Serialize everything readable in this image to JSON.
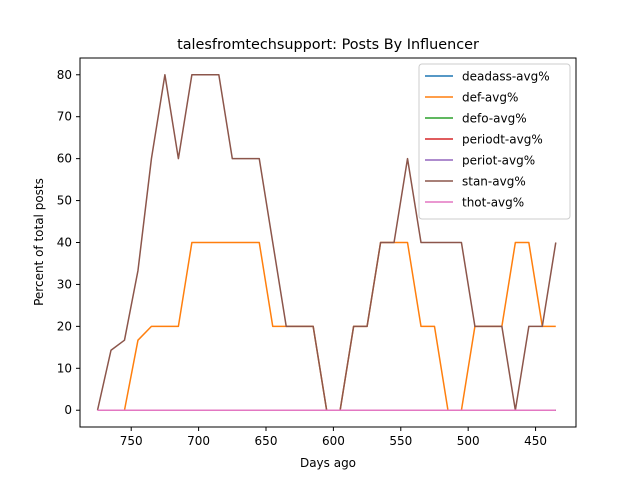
{
  "chart_data": {
    "type": "line",
    "title": "talesfromtechsupport: Posts By Influencer",
    "xlabel": "Days ago",
    "ylabel": "Percent of total posts",
    "x_reversed": true,
    "xlim": [
      788,
      420
    ],
    "ylim": [
      -4,
      84
    ],
    "xticks": [
      750,
      700,
      650,
      600,
      550,
      500,
      450
    ],
    "yticks": [
      0,
      10,
      20,
      30,
      40,
      50,
      60,
      70,
      80
    ],
    "legend_position": "top-right",
    "x": [
      775,
      765,
      755,
      745,
      735,
      725,
      715,
      705,
      695,
      685,
      675,
      665,
      655,
      645,
      635,
      625,
      615,
      605,
      595,
      585,
      575,
      565,
      555,
      545,
      535,
      525,
      515,
      505,
      495,
      485,
      475,
      465,
      455,
      445,
      435
    ],
    "series": [
      {
        "name": "deadass-avg%",
        "color": "#1f77b4",
        "values": [
          0,
          0,
          0,
          0,
          0,
          0,
          0,
          0,
          0,
          0,
          0,
          0,
          0,
          0,
          0,
          0,
          0,
          0,
          0,
          0,
          0,
          0,
          0,
          0,
          0,
          0,
          0,
          0,
          0,
          0,
          0,
          0,
          0,
          0,
          0
        ]
      },
      {
        "name": "def-avg%",
        "color": "#ff7f0e",
        "values": [
          0,
          0,
          0,
          16.7,
          20,
          20,
          20,
          40,
          40,
          40,
          40,
          40,
          40,
          20,
          20,
          20,
          20,
          0,
          0,
          20,
          20,
          40,
          40,
          40,
          20,
          20,
          0,
          0,
          20,
          20,
          20,
          40,
          40,
          20,
          20
        ]
      },
      {
        "name": "defo-avg%",
        "color": "#2ca02c",
        "values": [
          0,
          0,
          0,
          0,
          0,
          0,
          0,
          0,
          0,
          0,
          0,
          0,
          0,
          0,
          0,
          0,
          0,
          0,
          0,
          0,
          0,
          0,
          0,
          0,
          0,
          0,
          0,
          0,
          0,
          0,
          0,
          0,
          0,
          0,
          0
        ]
      },
      {
        "name": "periodt-avg%",
        "color": "#d62728",
        "values": [
          0,
          0,
          0,
          0,
          0,
          0,
          0,
          0,
          0,
          0,
          0,
          0,
          0,
          0,
          0,
          0,
          0,
          0,
          0,
          0,
          0,
          0,
          0,
          0,
          0,
          0,
          0,
          0,
          0,
          0,
          0,
          0,
          0,
          0,
          0
        ]
      },
      {
        "name": "periot-avg%",
        "color": "#9467bd",
        "values": [
          0,
          0,
          0,
          0,
          0,
          0,
          0,
          0,
          0,
          0,
          0,
          0,
          0,
          0,
          0,
          0,
          0,
          0,
          0,
          0,
          0,
          0,
          0,
          0,
          0,
          0,
          0,
          0,
          0,
          0,
          0,
          0,
          0,
          0,
          0
        ]
      },
      {
        "name": "stan-avg%",
        "color": "#8c564b",
        "values": [
          0,
          14.3,
          16.7,
          33.3,
          60,
          80,
          60,
          80,
          80,
          80,
          60,
          60,
          60,
          40,
          20,
          20,
          20,
          0,
          0,
          20,
          20,
          40,
          40,
          60,
          40,
          40,
          40,
          40,
          20,
          20,
          20,
          0,
          20,
          20,
          40
        ]
      },
      {
        "name": "thot-avg%",
        "color": "#e377c2",
        "values": [
          0,
          0,
          0,
          0,
          0,
          0,
          0,
          0,
          0,
          0,
          0,
          0,
          0,
          0,
          0,
          0,
          0,
          0,
          0,
          0,
          0,
          0,
          0,
          0,
          0,
          0,
          0,
          0,
          0,
          0,
          0,
          0,
          0,
          0,
          0
        ]
      }
    ]
  }
}
